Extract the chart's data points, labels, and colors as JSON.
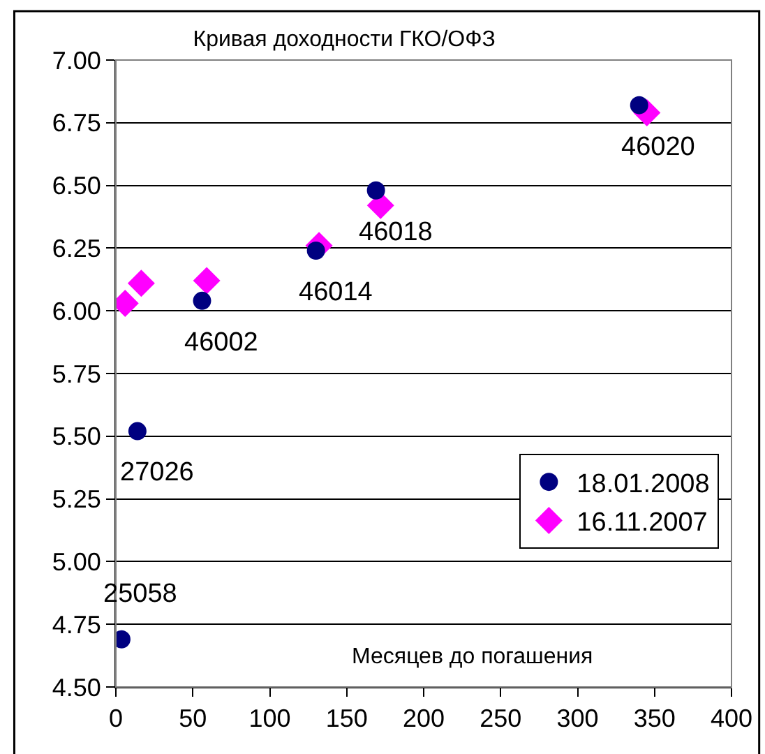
{
  "chart_data": {
    "type": "scatter",
    "title": "Кривая доходности ГКО/ОФЗ",
    "xlabel": "Месяцев до погашения",
    "series": [
      {
        "name": "18.01.2008",
        "color": "#000080",
        "marker": "circle",
        "x": [
          3.6,
          14,
          56,
          130,
          169,
          340
        ],
        "values": [
          4.69,
          5.52,
          6.04,
          6.24,
          6.48,
          6.82
        ]
      },
      {
        "name": "16.11.2007",
        "color": "#ff00ff",
        "marker": "diamond",
        "x": [
          6,
          16.5,
          59,
          132,
          172,
          345
        ],
        "values": [
          6.03,
          6.11,
          6.12,
          6.26,
          6.42,
          6.79
        ]
      }
    ],
    "annotations": [
      {
        "text": "25058",
        "x": 3.6,
        "y": 4.69
      },
      {
        "text": "27026",
        "x": 14,
        "y": 5.52
      },
      {
        "text": "46002",
        "x": 56,
        "y": 6.04
      },
      {
        "text": "46014",
        "x": 130,
        "y": 6.24
      },
      {
        "text": "46018",
        "x": 169,
        "y": 6.48
      },
      {
        "text": "46020",
        "x": 340,
        "y": 6.82
      }
    ],
    "xlim": [
      0,
      400
    ],
    "xticks": [
      0,
      50,
      100,
      150,
      200,
      250,
      300,
      350,
      400
    ],
    "ylim": [
      4.5,
      7
    ],
    "yticks": [
      {
        "value": 4.5,
        "label": "4.50"
      },
      {
        "value": 4.75,
        "label": "4.75"
      },
      {
        "value": 5,
        "label": "5.00"
      },
      {
        "value": 5.25,
        "label": "5.25"
      },
      {
        "value": 5.5,
        "label": "5.50"
      },
      {
        "value": 5.75,
        "label": "5.75"
      },
      {
        "value": 6,
        "label": "6.00"
      },
      {
        "value": 6.25,
        "label": "6.25"
      },
      {
        "value": 6.5,
        "label": "6.50"
      },
      {
        "value": 6.75,
        "label": "6.75"
      },
      {
        "value": 7,
        "label": "7.00"
      }
    ],
    "grid": "y",
    "legend": "bottom right"
  }
}
